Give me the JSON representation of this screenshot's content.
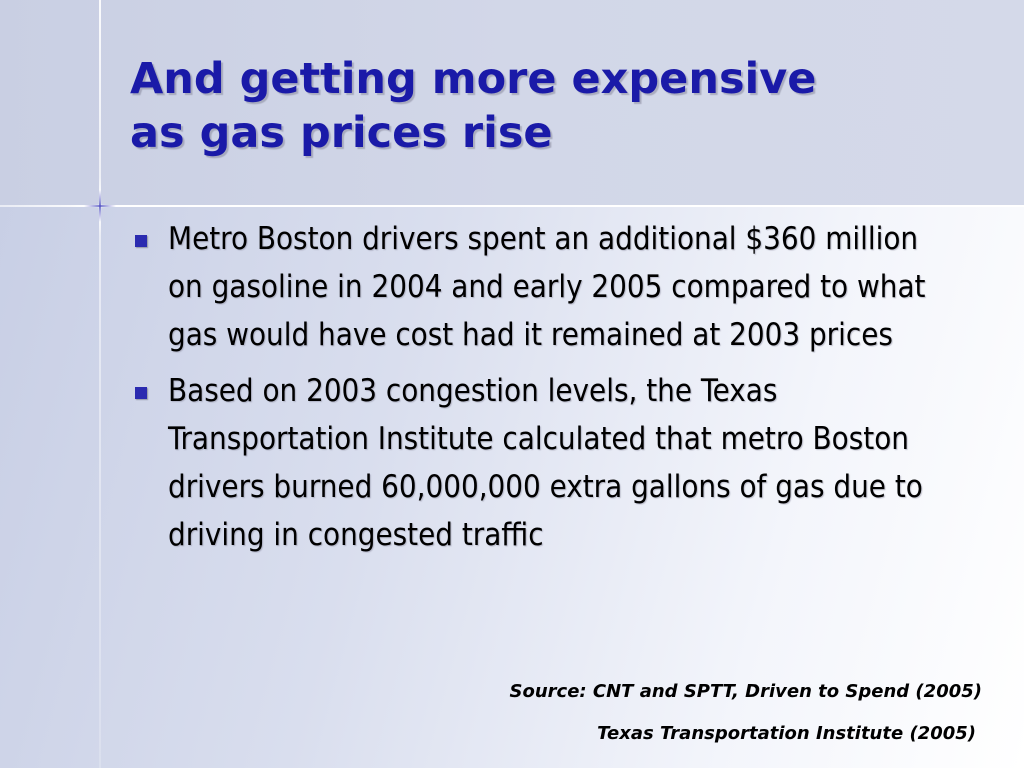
{
  "slide": {
    "title_line1": "And getting more expensive",
    "title_line2": "as gas prices rise",
    "bullets": [
      "Metro Boston drivers spent an additional $360 million on gasoline in 2004 and early 2005 compared to what gas would have cost had it remained at 2003 prices",
      "Based on 2003 congestion levels, the Texas Transportation Institute calculated that metro Boston drivers burned 60,000,000 extra gallons of gas due to driving in congested traffic"
    ],
    "source_line1": "Source:  CNT and SPTT, Driven to Spend (2005)",
    "source_line2": "Texas Transportation Institute (2005)"
  },
  "colors": {
    "title": "#1a1aa8",
    "bullet_marker": "#2b2bb0",
    "body_text": "#000000"
  }
}
